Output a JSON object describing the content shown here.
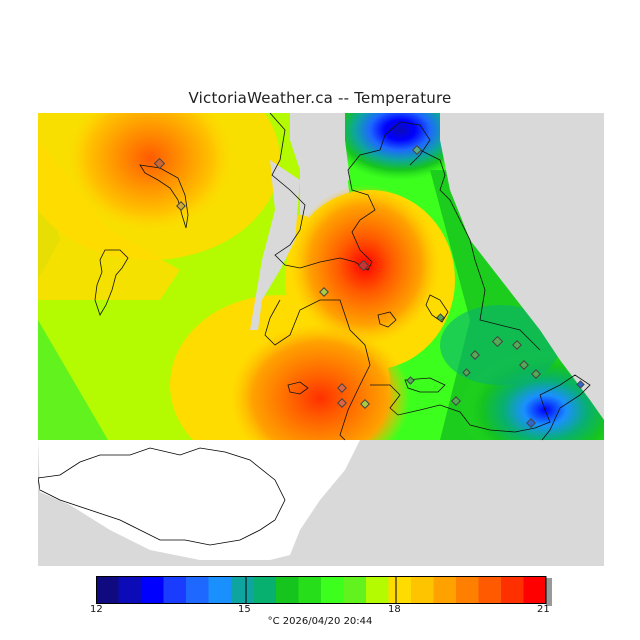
{
  "title": "VictoriaWeather.ca -- Temperature",
  "legend": {
    "min": 12,
    "max": 21,
    "tick_labels": [
      "12",
      "15",
      "18",
      "21"
    ],
    "tick_values": [
      12,
      15,
      18,
      21
    ],
    "units_and_time": "°C  2026/04/20 20:44",
    "colors": [
      "#100a80",
      "#0b0bb8",
      "#0000ff",
      "#1a3cff",
      "#1e68ff",
      "#1a90ff",
      "#0ea5a0",
      "#08b070",
      "#16c41e",
      "#26de1a",
      "#3cff1e",
      "#62f21e",
      "#b4fa00",
      "#ffdc00",
      "#ffc400",
      "#ffa200",
      "#ff7f00",
      "#ff5a00",
      "#ff3000",
      "#ff0000"
    ]
  },
  "map": {
    "background_land_color": "#d9d9d9",
    "water_color": "#ffffff",
    "warm_spots": [
      {
        "name": "northwest-hotspot",
        "temp": 19.5
      },
      {
        "name": "victoria-hotspot",
        "temp": 20.8
      },
      {
        "name": "southwest-hotspot",
        "temp": 19.8
      }
    ],
    "cool_spots": [
      {
        "name": "north-peninsula-cool",
        "temp": 13.2
      },
      {
        "name": "oak-bay-cool",
        "temp": 13.8
      }
    ],
    "station_count": 18
  }
}
